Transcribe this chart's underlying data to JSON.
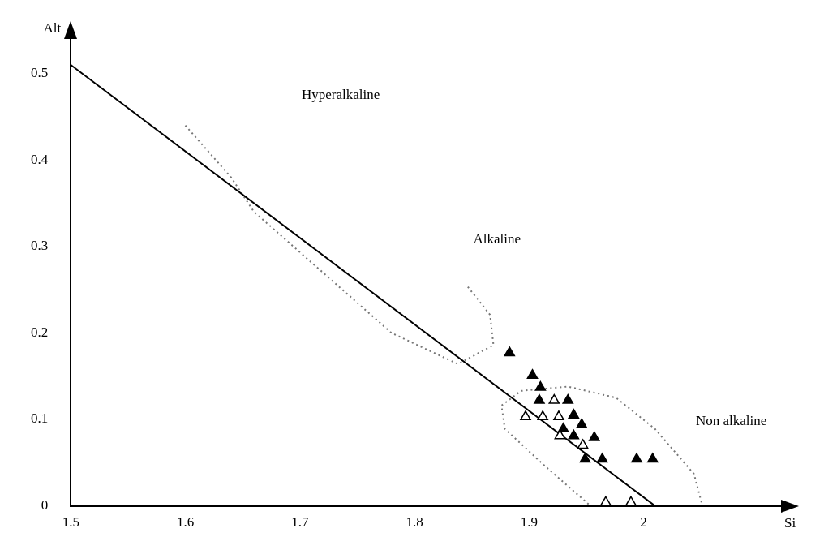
{
  "chart_data": {
    "type": "scatter",
    "xlabel": "Si",
    "ylabel": "Alt",
    "xlim": [
      1.5,
      2.12
    ],
    "ylim": [
      0,
      0.54
    ],
    "xticks": [
      1.5,
      1.6,
      1.7,
      1.8,
      1.9,
      2
    ],
    "yticks": [
      0,
      0.1,
      0.2,
      0.3,
      0.4,
      0.5
    ],
    "grid": false,
    "legend": false,
    "marker": "triangle",
    "annotations": [
      "Hyperalkaline",
      "Alkaline",
      "Non alkaline"
    ],
    "series": [
      {
        "type": "scatter",
        "color": "#000000",
        "x": [
          1.883,
          1.903,
          1.91,
          1.909,
          1.934,
          1.939,
          1.946,
          1.93,
          1.939,
          1.957,
          1.949,
          1.964,
          1.994,
          2.008
        ],
        "values": [
          0.177,
          0.151,
          0.137,
          0.122,
          0.122,
          0.105,
          0.094,
          0.089,
          0.081,
          0.079,
          0.054,
          0.054,
          0.054,
          0.054
        ]
      },
      {
        "type": "scatter",
        "color": "#ffffff",
        "x": [
          1.922,
          1.897,
          1.912,
          1.926,
          1.927,
          1.947,
          1.967,
          1.989
        ],
        "values": [
          0.122,
          0.103,
          0.103,
          0.103,
          0.081,
          0.07,
          0.004,
          0.004
        ]
      },
      {
        "type": "line",
        "color": "#000000",
        "marker": "none",
        "line_style": "solid",
        "x": [
          1.5,
          2.01
        ],
        "values": [
          0.51,
          0
        ]
      },
      {
        "type": "line",
        "color": "#777777",
        "marker": "none",
        "line_style": "dotted",
        "x": [
          1.6,
          1.64,
          1.66,
          1.72,
          1.78,
          1.838,
          1.869,
          1.866,
          1.845
        ],
        "values": [
          0.44,
          0.38,
          0.34,
          0.27,
          0.2,
          0.164,
          0.186,
          0.221,
          0.256
        ]
      },
      {
        "type": "line",
        "color": "#777777",
        "marker": "none",
        "line_style": "dotted",
        "x": [
          1.952,
          1.914,
          1.879,
          1.876,
          1.893,
          1.934,
          1.976,
          2.01,
          2.044,
          2.051
        ],
        "values": [
          0.002,
          0.046,
          0.089,
          0.116,
          0.133,
          0.138,
          0.125,
          0.089,
          0.037,
          0.002
        ]
      }
    ]
  }
}
